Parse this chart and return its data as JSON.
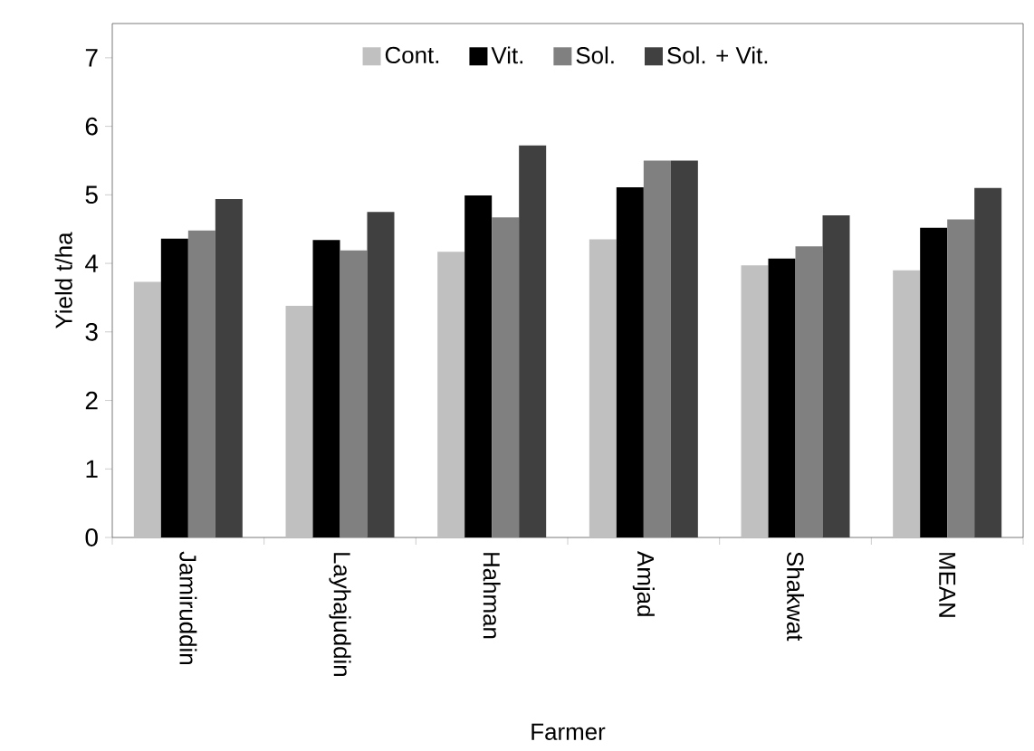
{
  "chart_data": {
    "type": "bar",
    "xlabel": "Farmer",
    "ylabel": "Yield t/ha",
    "categories": [
      "Jamiruddin",
      "Layhajuddin",
      "Hahman",
      "Amjad",
      "Shakwat",
      "MEAN"
    ],
    "series": [
      {
        "name": "Cont.",
        "color": "#c0c0c0",
        "values": [
          3.73,
          3.38,
          4.17,
          4.35,
          3.97,
          3.9
        ]
      },
      {
        "name": "Vit.",
        "color": "#000000",
        "values": [
          4.36,
          4.34,
          4.99,
          5.11,
          4.07,
          4.52
        ]
      },
      {
        "name": "Sol.",
        "color": "#808080",
        "values": [
          4.48,
          4.19,
          4.67,
          5.5,
          4.25,
          4.64
        ]
      },
      {
        "name": "Sol. + Vit.",
        "color": "#404040",
        "values": [
          4.94,
          4.75,
          5.72,
          5.5,
          4.7,
          5.1
        ]
      }
    ],
    "ylim": [
      0,
      7.5
    ],
    "yticks": [
      0,
      1,
      2,
      3,
      4,
      5,
      6,
      7
    ],
    "grid": false,
    "legend": "top"
  }
}
